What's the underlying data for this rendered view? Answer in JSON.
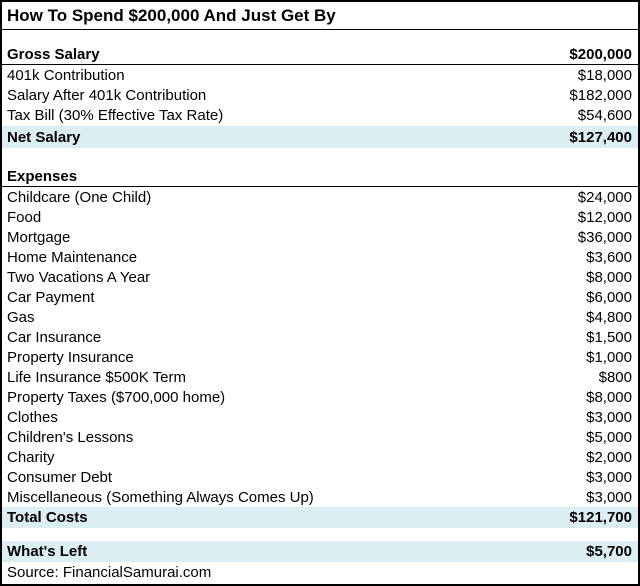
{
  "title": "How To Spend $200,000 And Just Get By",
  "colors": {
    "highlight_blue": "#DAEEF3",
    "border_black": "#000000",
    "background": "#FFFFFF"
  },
  "salary": {
    "header": {
      "label": "Gross Salary",
      "value": "$200,000"
    },
    "rows": [
      {
        "label": "401k Contribution",
        "value": "$18,000"
      },
      {
        "label": "Salary After 401k Contribution",
        "value": "$182,000"
      },
      {
        "label": "Tax Bill (30% Effective Tax Rate)",
        "value": "$54,600"
      }
    ],
    "total": {
      "label": "Net Salary",
      "value": "$127,400"
    }
  },
  "expenses": {
    "header_label": "Expenses",
    "rows": [
      {
        "label": "Childcare (One Child)",
        "value": "$24,000"
      },
      {
        "label": "Food",
        "value": "$12,000"
      },
      {
        "label": "Mortgage",
        "value": "$36,000"
      },
      {
        "label": "Home Maintenance",
        "value": "$3,600"
      },
      {
        "label": "Two Vacations A Year",
        "value": "$8,000"
      },
      {
        "label": "Car Payment",
        "value": "$6,000"
      },
      {
        "label": "Gas",
        "value": "$4,800"
      },
      {
        "label": "Car Insurance",
        "value": "$1,500"
      },
      {
        "label": "Property Insurance",
        "value": "$1,000"
      },
      {
        "label": "Life Insurance $500K Term",
        "value": "$800"
      },
      {
        "label": "Property Taxes ($700,000 home)",
        "value": "$8,000"
      },
      {
        "label": "Clothes",
        "value": "$3,000"
      },
      {
        "label": "Children's Lessons",
        "value": "$5,000"
      },
      {
        "label": "Charity",
        "value": "$2,000"
      },
      {
        "label": "Consumer Debt",
        "value": "$3,000"
      },
      {
        "label": "Miscellaneous (Something Always Comes Up)",
        "value": "$3,000"
      }
    ],
    "total": {
      "label": "Total Costs",
      "value": "$121,700"
    }
  },
  "summary": {
    "label": "What's Left",
    "value": "$5,700"
  },
  "source_label": "Source: FinancialSamurai.com"
}
